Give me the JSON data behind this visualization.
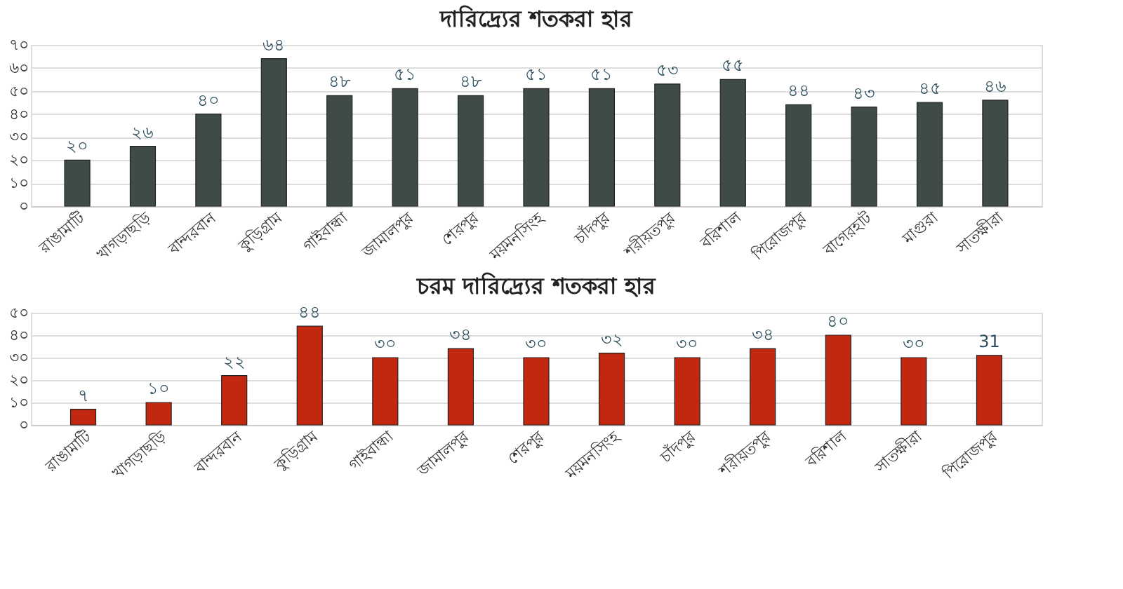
{
  "chart_data": [
    {
      "type": "bar",
      "title": "দারিদ্র্যের শতকরা হার",
      "categories": [
        "রাঙামাটি",
        "খাগড়াছড়ি",
        "বান্দরবান",
        "কুড়িগ্রাম",
        "গাইবান্ধা",
        "জামালপুর",
        "শেরপুর",
        "ময়মনসিংহ",
        "চাঁদপুর",
        "শরীয়তপুর",
        "বরিশাল",
        "পিরোজপুর",
        "বাগেরহাট",
        "মাগুরা",
        "সাতক্ষীরা"
      ],
      "series": [
        {
          "color": "#3e4b49",
          "values": [
            20,
            26,
            40,
            64,
            48,
            51,
            48,
            51,
            51,
            53,
            55,
            44,
            43,
            45,
            46
          ],
          "value_labels": [
            "২০",
            "২৬",
            "৪০",
            "৬৪",
            "৪৮",
            "৫১",
            "৪৮",
            "৫১",
            "৫১",
            "৫৩",
            "৫৫",
            "৪৪",
            "৪৩",
            "৪৫",
            "৪৬"
          ]
        }
      ],
      "ylim": [
        0,
        70
      ],
      "yticks": [
        {
          "value": 0,
          "label": "০"
        },
        {
          "value": 10,
          "label": "১০"
        },
        {
          "value": 20,
          "label": "২০"
        },
        {
          "value": 30,
          "label": "৩০"
        },
        {
          "value": 40,
          "label": "৪০"
        },
        {
          "value": 50,
          "label": "৫০"
        },
        {
          "value": 60,
          "label": "৬০"
        },
        {
          "value": 70,
          "label": "৭০"
        }
      ],
      "grid": "y"
    },
    {
      "type": "bar",
      "title": "চরম দারিদ্র্যের শতকরা হার",
      "categories": [
        "রাঙামাটি",
        "খাগড়াছড়ি",
        "বান্দরবান",
        "কুড়িগ্রাম",
        "গাইবান্ধা",
        "জামালপুর",
        "শেরপুর",
        "ময়মনসিংহ",
        "চাঁদপুর",
        "শরীয়তপুর",
        "বরিশাল",
        "সাতক্ষীরা",
        "পিরোজপুর"
      ],
      "series": [
        {
          "color": "#c2280f",
          "values": [
            7,
            10,
            22,
            44,
            30,
            34,
            30,
            32,
            30,
            34,
            40,
            30,
            31
          ],
          "value_labels": [
            "৭",
            "১০",
            "২২",
            "৪৪",
            "৩০",
            "৩৪",
            "৩০",
            "৩২",
            "৩০",
            "৩৪",
            "৪০",
            "৩০",
            "31"
          ]
        }
      ],
      "ylim": [
        0,
        50
      ],
      "yticks": [
        {
          "value": 0,
          "label": "০"
        },
        {
          "value": 10,
          "label": "১০"
        },
        {
          "value": 20,
          "label": "২০"
        },
        {
          "value": 30,
          "label": "৩০"
        },
        {
          "value": 40,
          "label": "৪০"
        },
        {
          "value": 50,
          "label": "৫০"
        }
      ],
      "grid": "y"
    }
  ]
}
